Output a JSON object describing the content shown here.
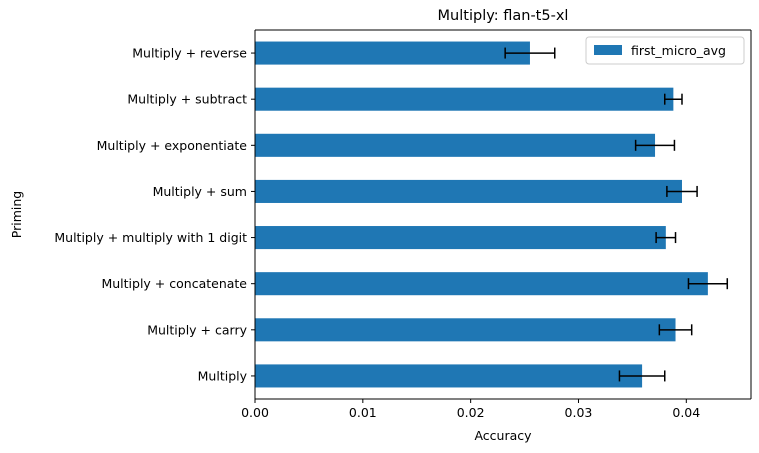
{
  "chart_data": {
    "type": "bar",
    "orientation": "horizontal",
    "title": "Multiply: flan-t5-xl",
    "xlabel": "Accuracy",
    "ylabel": "Priming",
    "xlim": [
      0,
      0.046
    ],
    "xticks": [
      0.0,
      0.01,
      0.02,
      0.03,
      0.04
    ],
    "xtick_labels": [
      "0.00",
      "0.01",
      "0.02",
      "0.03",
      "0.04"
    ],
    "grid": false,
    "legend_position": "top-right",
    "categories": [
      "Multiply",
      "Multiply + carry",
      "Multiply + concatenate",
      "Multiply + multiply with 1 digit",
      "Multiply + sum",
      "Multiply + exponentiate",
      "Multiply + subtract",
      "Multiply + reverse"
    ],
    "series": [
      {
        "name": "first_micro_avg",
        "color": "#1f77b4",
        "values": [
          0.0359,
          0.039,
          0.042,
          0.0381,
          0.0396,
          0.0371,
          0.0388,
          0.0255
        ],
        "errors": [
          0.0021,
          0.0015,
          0.0018,
          0.0009,
          0.0014,
          0.0018,
          0.0008,
          0.0023
        ]
      }
    ]
  }
}
